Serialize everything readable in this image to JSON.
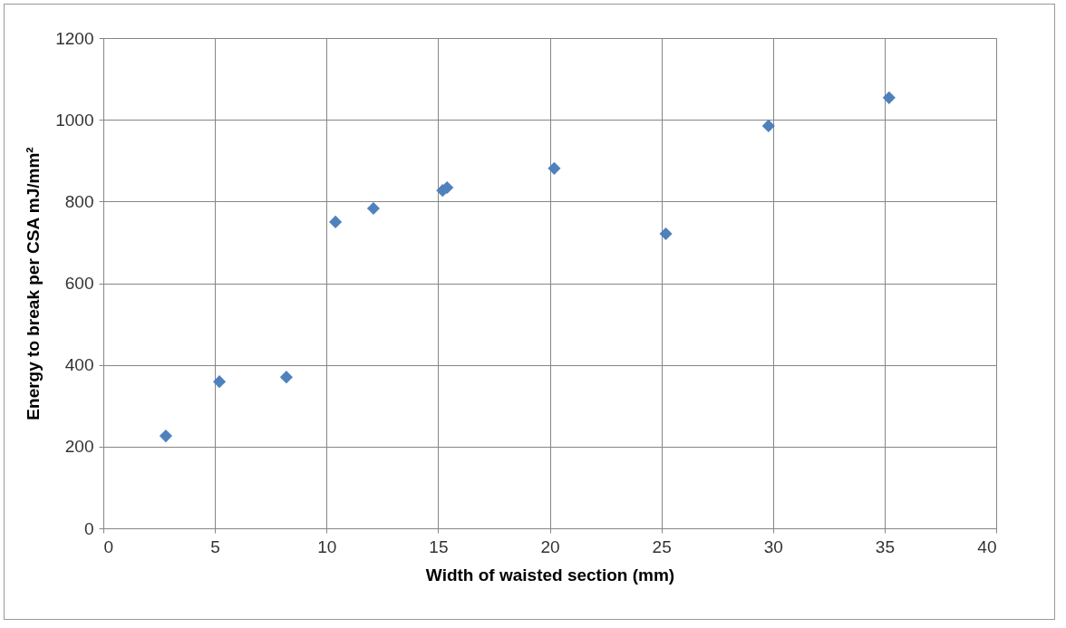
{
  "chart_data": {
    "type": "scatter",
    "xlabel": "Width of waisted section (mm)",
    "ylabel": "Energy to break per CSA mJ/mm²",
    "x": [
      2.8,
      5.2,
      8.2,
      10.4,
      12.1,
      15.2,
      15.4,
      20.2,
      25.2,
      29.8,
      35.2
    ],
    "values": [
      226,
      359,
      370,
      750,
      783,
      827,
      834,
      881,
      721,
      985,
      1054
    ],
    "color": "#4f81bd",
    "marker": "diamond",
    "grid": true,
    "xlim": [
      0,
      40
    ],
    "xticks": [
      0,
      5,
      10,
      15,
      20,
      25,
      30,
      35,
      40
    ],
    "ylim": [
      0,
      1200
    ],
    "yticks": [
      0,
      200,
      400,
      600,
      800,
      1000,
      1200
    ]
  }
}
